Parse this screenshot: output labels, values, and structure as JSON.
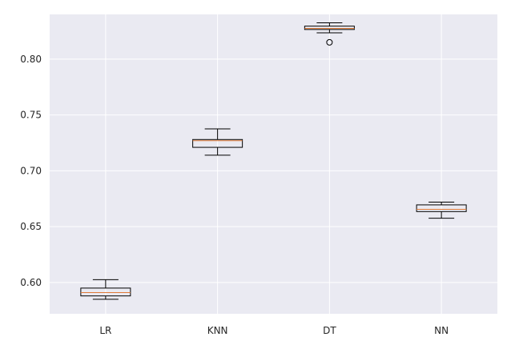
{
  "chart_data": {
    "type": "box",
    "title": "",
    "xlabel": "",
    "ylabel": "",
    "categories": [
      "LR",
      "KNN",
      "DT",
      "NN"
    ],
    "ylim": [
      0.572,
      0.84
    ],
    "yticks": [
      0.6,
      0.65,
      0.7,
      0.75,
      0.8
    ],
    "ytick_labels": [
      "0.60",
      "0.65",
      "0.70",
      "0.75",
      "0.80"
    ],
    "grid": true,
    "boxes": [
      {
        "name": "LR",
        "whislo": 0.585,
        "q1": 0.588,
        "med": 0.591,
        "q3": 0.595,
        "whishi": 0.6025,
        "fliers": []
      },
      {
        "name": "KNN",
        "whislo": 0.714,
        "q1": 0.721,
        "med": 0.727,
        "q3": 0.728,
        "whishi": 0.7375,
        "fliers": []
      },
      {
        "name": "DT",
        "whislo": 0.8235,
        "q1": 0.8265,
        "med": 0.8275,
        "q3": 0.8295,
        "whishi": 0.8325,
        "fliers": [
          0.815
        ]
      },
      {
        "name": "NN",
        "whislo": 0.6575,
        "q1": 0.6635,
        "med": 0.6655,
        "q3": 0.6695,
        "whishi": 0.672,
        "fliers": []
      }
    ],
    "colors": {
      "background": "#eaeaf2",
      "grid": "#ffffff",
      "box_edge": "#000000",
      "median": "#e07b39",
      "tick_text": "#262626"
    }
  }
}
